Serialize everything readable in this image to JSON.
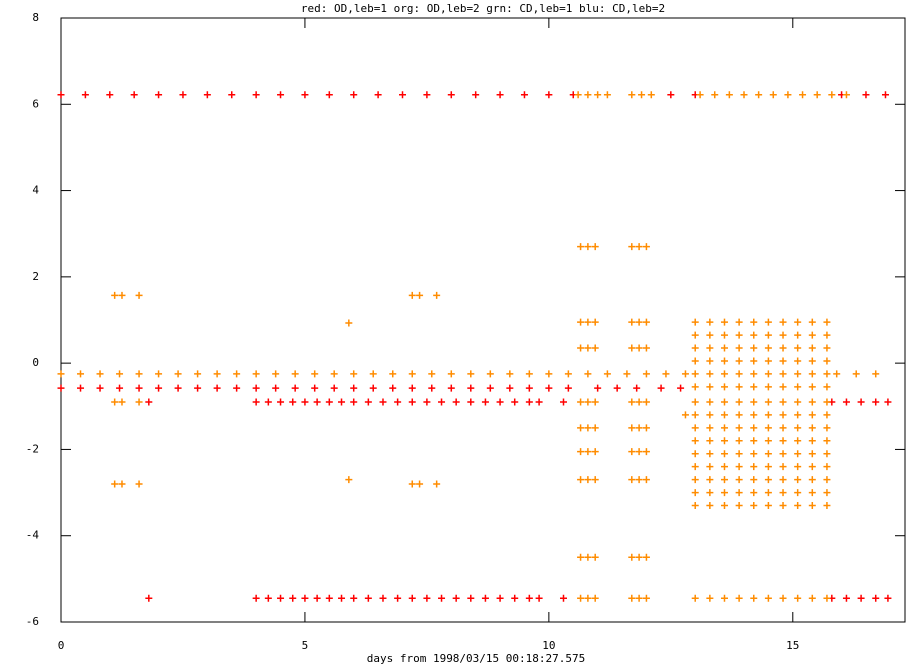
{
  "chart_data": {
    "type": "scatter",
    "title": "red: OD,leb=1  org: OD,leb=2  grn: CD,leb=1  blu: CD,leb=2",
    "x_label": "days from 1998/03/15 00:18:27.575",
    "xlim": [
      0,
      17.3
    ],
    "ylim": [
      -6,
      8
    ],
    "xticks": [
      0,
      5,
      10,
      15
    ],
    "yticks": [
      -6,
      -4,
      -2,
      0,
      2,
      4,
      6,
      8
    ],
    "series": [
      {
        "color": "#ff0000",
        "x": [
          0,
          0.5,
          1,
          1.5,
          2,
          2.5,
          3,
          3.5,
          4,
          4.5,
          5,
          5.5,
          6,
          6.5,
          7,
          7.5,
          8,
          8.5,
          9,
          9.5,
          10,
          10.5,
          12.5,
          13,
          16,
          16.5,
          16.9
        ],
        "values": [
          6.22,
          6.22,
          6.22,
          6.22,
          6.22,
          6.22,
          6.22,
          6.22,
          6.22,
          6.22,
          6.22,
          6.22,
          6.22,
          6.22,
          6.22,
          6.22,
          6.22,
          6.22,
          6.22,
          6.22,
          6.22,
          6.22,
          6.22,
          6.22,
          6.22,
          6.22,
          6.22
        ]
      },
      {
        "color": "#ff8c00",
        "x": [
          10.6,
          10.8,
          11,
          11.2,
          11.7,
          11.9,
          12.1,
          13.1,
          13.4,
          13.7,
          14,
          14.3,
          14.6,
          14.9,
          15.2,
          15.5,
          15.8,
          16.1
        ],
        "values": [
          6.22,
          6.22,
          6.22,
          6.22,
          6.22,
          6.22,
          6.22,
          6.22,
          6.22,
          6.22,
          6.22,
          6.22,
          6.22,
          6.22,
          6.22,
          6.22,
          6.22,
          6.22
        ]
      },
      {
        "color": "#ff0000",
        "x": [
          0,
          0.4,
          0.8,
          1.2,
          1.6,
          2,
          2.4,
          2.8,
          3.2,
          3.6,
          4,
          4.4,
          4.8,
          5.2,
          5.6,
          6,
          6.4,
          6.8,
          7.2,
          7.6,
          8,
          8.4,
          8.8,
          9.2,
          9.6,
          10,
          10.4,
          11,
          11.4,
          11.8,
          12.3,
          12.7
        ],
        "values": [
          -0.58,
          -0.58,
          -0.58,
          -0.58,
          -0.58,
          -0.58,
          -0.58,
          -0.58,
          -0.58,
          -0.58,
          -0.58,
          -0.58,
          -0.58,
          -0.58,
          -0.58,
          -0.58,
          -0.58,
          -0.58,
          -0.58,
          -0.58,
          -0.58,
          -0.58,
          -0.58,
          -0.58,
          -0.58,
          -0.58,
          -0.58,
          -0.58,
          -0.58,
          -0.58,
          -0.58,
          -0.58
        ]
      },
      {
        "color": "#ff0000",
        "x": [
          1.8,
          4,
          4.25,
          4.5,
          4.75,
          5,
          5.25,
          5.5,
          5.75,
          6,
          6.3,
          6.6,
          6.9,
          7.2,
          7.5,
          7.8,
          8.1,
          8.4,
          8.7,
          9,
          9.3,
          9.6,
          9.8,
          10.3,
          15.8,
          16.1,
          16.4,
          16.7,
          16.95
        ],
        "values": [
          -0.9,
          -0.9,
          -0.9,
          -0.9,
          -0.9,
          -0.9,
          -0.9,
          -0.9,
          -0.9,
          -0.9,
          -0.9,
          -0.9,
          -0.9,
          -0.9,
          -0.9,
          -0.9,
          -0.9,
          -0.9,
          -0.9,
          -0.9,
          -0.9,
          -0.9,
          -0.9,
          -0.9,
          -0.9,
          -0.9,
          -0.9,
          -0.9,
          -0.9
        ]
      },
      {
        "color": "#ff0000",
        "x": [
          1.8,
          4,
          4.25,
          4.5,
          4.75,
          5,
          5.25,
          5.5,
          5.75,
          6,
          6.3,
          6.6,
          6.9,
          7.2,
          7.5,
          7.8,
          8.1,
          8.4,
          8.7,
          9,
          9.3,
          9.6,
          9.8,
          10.3,
          15.8,
          16.1,
          16.4,
          16.7,
          16.95
        ],
        "values": [
          -5.45,
          -5.45,
          -5.45,
          -5.45,
          -5.45,
          -5.45,
          -5.45,
          -5.45,
          -5.45,
          -5.45,
          -5.45,
          -5.45,
          -5.45,
          -5.45,
          -5.45,
          -5.45,
          -5.45,
          -5.45,
          -5.45,
          -5.45,
          -5.45,
          -5.45,
          -5.45,
          -5.45,
          -5.45,
          -5.45,
          -5.45,
          -5.45,
          -5.45
        ]
      },
      {
        "color": "#ff8c00",
        "x": [
          0,
          0.4,
          0.8,
          1.2,
          1.6,
          2,
          2.4,
          2.8,
          3.2,
          3.6,
          4,
          4.4,
          4.8,
          5.2,
          5.6,
          6,
          6.4,
          6.8,
          7.2,
          7.6,
          8,
          8.4,
          8.8,
          9.2,
          9.6,
          10,
          10.4,
          10.8,
          11.2,
          11.6,
          12,
          12.4,
          12.8,
          15.9,
          16.3,
          16.7
        ],
        "values": [
          -0.25,
          -0.25,
          -0.25,
          -0.25,
          -0.25,
          -0.25,
          -0.25,
          -0.25,
          -0.25,
          -0.25,
          -0.25,
          -0.25,
          -0.25,
          -0.25,
          -0.25,
          -0.25,
          -0.25,
          -0.25,
          -0.25,
          -0.25,
          -0.25,
          -0.25,
          -0.25,
          -0.25,
          -0.25,
          -0.25,
          -0.25,
          -0.25,
          -0.25,
          -0.25,
          -0.25,
          -0.25,
          -0.25,
          -0.25,
          -0.25,
          -0.25
        ]
      },
      {
        "color": "#ff8c00",
        "x": [
          1.1,
          1.25,
          1.6,
          7.2,
          7.35,
          7.7,
          1.1,
          1.25,
          1.6,
          7.2,
          7.35,
          7.7,
          1.1,
          1.25,
          1.6,
          5.9,
          5.9,
          12.8
        ],
        "values": [
          1.57,
          1.57,
          1.57,
          1.57,
          1.57,
          1.57,
          -2.8,
          -2.8,
          -2.8,
          -2.8,
          -2.8,
          -2.8,
          -0.9,
          -0.9,
          -0.9,
          0.93,
          -2.7,
          -1.2
        ]
      },
      {
        "color": "#ff8c00",
        "x": [
          10.65,
          10.8,
          10.95,
          11.7,
          11.85,
          12.0
        ],
        "values": [
          2.7,
          2.7,
          2.7,
          2.7,
          2.7,
          2.7
        ]
      },
      {
        "color": "#ff8c00",
        "x": [
          10.65,
          10.8,
          10.95,
          11.7,
          11.85,
          12.0
        ],
        "values": [
          0.95,
          0.95,
          0.95,
          0.95,
          0.95,
          0.95
        ]
      },
      {
        "color": "#ff8c00",
        "x": [
          10.65,
          10.8,
          10.95,
          11.7,
          11.85,
          12.0
        ],
        "values": [
          0.35,
          0.35,
          0.35,
          0.35,
          0.35,
          0.35
        ]
      },
      {
        "color": "#ff8c00",
        "x": [
          10.65,
          10.8,
          10.95,
          11.7,
          11.85,
          12.0
        ],
        "values": [
          -0.9,
          -0.9,
          -0.9,
          -0.9,
          -0.9,
          -0.9
        ]
      },
      {
        "color": "#ff8c00",
        "x": [
          10.65,
          10.8,
          10.95,
          11.7,
          11.85,
          12.0
        ],
        "values": [
          -1.5,
          -1.5,
          -1.5,
          -1.5,
          -1.5,
          -1.5
        ]
      },
      {
        "color": "#ff8c00",
        "x": [
          10.65,
          10.8,
          10.95,
          11.7,
          11.85,
          12.0
        ],
        "values": [
          -2.05,
          -2.05,
          -2.05,
          -2.05,
          -2.05,
          -2.05
        ]
      },
      {
        "color": "#ff8c00",
        "x": [
          10.65,
          10.8,
          10.95,
          11.7,
          11.85,
          12.0
        ],
        "values": [
          -2.7,
          -2.7,
          -2.7,
          -2.7,
          -2.7,
          -2.7
        ]
      },
      {
        "color": "#ff8c00",
        "x": [
          10.65,
          10.8,
          10.95,
          11.7,
          11.85,
          12.0
        ],
        "values": [
          -4.5,
          -4.5,
          -4.5,
          -4.5,
          -4.5,
          -4.5
        ]
      },
      {
        "color": "#ff8c00",
        "x": [
          10.65,
          10.8,
          10.95,
          11.7,
          11.85,
          12.0
        ],
        "values": [
          -5.45,
          -5.45,
          -5.45,
          -5.45,
          -5.45,
          -5.45
        ]
      },
      {
        "color": "#ff8c00",
        "x": [
          13.0,
          13.3,
          13.6,
          13.9,
          14.2,
          14.5,
          14.8,
          15.1,
          15.4,
          15.7
        ],
        "values": [
          0.95,
          0.95,
          0.95,
          0.95,
          0.95,
          0.95,
          0.95,
          0.95,
          0.95,
          0.95
        ]
      },
      {
        "color": "#ff8c00",
        "x": [
          13.0,
          13.3,
          13.6,
          13.9,
          14.2,
          14.5,
          14.8,
          15.1,
          15.4,
          15.7
        ],
        "values": [
          0.65,
          0.65,
          0.65,
          0.65,
          0.65,
          0.65,
          0.65,
          0.65,
          0.65,
          0.65
        ]
      },
      {
        "color": "#ff8c00",
        "x": [
          13.0,
          13.3,
          13.6,
          13.9,
          14.2,
          14.5,
          14.8,
          15.1,
          15.4,
          15.7
        ],
        "values": [
          0.35,
          0.35,
          0.35,
          0.35,
          0.35,
          0.35,
          0.35,
          0.35,
          0.35,
          0.35
        ]
      },
      {
        "color": "#ff8c00",
        "x": [
          13.0,
          13.3,
          13.6,
          13.9,
          14.2,
          14.5,
          14.8,
          15.1,
          15.4,
          15.7
        ],
        "values": [
          0.05,
          0.05,
          0.05,
          0.05,
          0.05,
          0.05,
          0.05,
          0.05,
          0.05,
          0.05
        ]
      },
      {
        "color": "#ff8c00",
        "x": [
          13.0,
          13.3,
          13.6,
          13.9,
          14.2,
          14.5,
          14.8,
          15.1,
          15.4,
          15.7
        ],
        "values": [
          -0.25,
          -0.25,
          -0.25,
          -0.25,
          -0.25,
          -0.25,
          -0.25,
          -0.25,
          -0.25,
          -0.25
        ]
      },
      {
        "color": "#ff8c00",
        "x": [
          13.0,
          13.3,
          13.6,
          13.9,
          14.2,
          14.5,
          14.8,
          15.1,
          15.4,
          15.7
        ],
        "values": [
          -0.55,
          -0.55,
          -0.55,
          -0.55,
          -0.55,
          -0.55,
          -0.55,
          -0.55,
          -0.55,
          -0.55
        ]
      },
      {
        "color": "#ff8c00",
        "x": [
          13.0,
          13.3,
          13.6,
          13.9,
          14.2,
          14.5,
          14.8,
          15.1,
          15.4,
          15.7
        ],
        "values": [
          -0.9,
          -0.9,
          -0.9,
          -0.9,
          -0.9,
          -0.9,
          -0.9,
          -0.9,
          -0.9,
          -0.9
        ]
      },
      {
        "color": "#ff8c00",
        "x": [
          13.0,
          13.3,
          13.6,
          13.9,
          14.2,
          14.5,
          14.8,
          15.1,
          15.4,
          15.7
        ],
        "values": [
          -1.2,
          -1.2,
          -1.2,
          -1.2,
          -1.2,
          -1.2,
          -1.2,
          -1.2,
          -1.2,
          -1.2
        ]
      },
      {
        "color": "#ff8c00",
        "x": [
          13.0,
          13.3,
          13.6,
          13.9,
          14.2,
          14.5,
          14.8,
          15.1,
          15.4,
          15.7
        ],
        "values": [
          -1.5,
          -1.5,
          -1.5,
          -1.5,
          -1.5,
          -1.5,
          -1.5,
          -1.5,
          -1.5,
          -1.5
        ]
      },
      {
        "color": "#ff8c00",
        "x": [
          13.0,
          13.3,
          13.6,
          13.9,
          14.2,
          14.5,
          14.8,
          15.1,
          15.4,
          15.7
        ],
        "values": [
          -1.8,
          -1.8,
          -1.8,
          -1.8,
          -1.8,
          -1.8,
          -1.8,
          -1.8,
          -1.8,
          -1.8
        ]
      },
      {
        "color": "#ff8c00",
        "x": [
          13.0,
          13.3,
          13.6,
          13.9,
          14.2,
          14.5,
          14.8,
          15.1,
          15.4,
          15.7
        ],
        "values": [
          -2.1,
          -2.1,
          -2.1,
          -2.1,
          -2.1,
          -2.1,
          -2.1,
          -2.1,
          -2.1,
          -2.1
        ]
      },
      {
        "color": "#ff8c00",
        "x": [
          13.0,
          13.3,
          13.6,
          13.9,
          14.2,
          14.5,
          14.8,
          15.1,
          15.4,
          15.7
        ],
        "values": [
          -2.4,
          -2.4,
          -2.4,
          -2.4,
          -2.4,
          -2.4,
          -2.4,
          -2.4,
          -2.4,
          -2.4
        ]
      },
      {
        "color": "#ff8c00",
        "x": [
          13.0,
          13.3,
          13.6,
          13.9,
          14.2,
          14.5,
          14.8,
          15.1,
          15.4,
          15.7
        ],
        "values": [
          -2.7,
          -2.7,
          -2.7,
          -2.7,
          -2.7,
          -2.7,
          -2.7,
          -2.7,
          -2.7,
          -2.7
        ]
      },
      {
        "color": "#ff8c00",
        "x": [
          13.0,
          13.3,
          13.6,
          13.9,
          14.2,
          14.5,
          14.8,
          15.1,
          15.4,
          15.7
        ],
        "values": [
          -3.0,
          -3.0,
          -3.0,
          -3.0,
          -3.0,
          -3.0,
          -3.0,
          -3.0,
          -3.0,
          -3.0
        ]
      },
      {
        "color": "#ff8c00",
        "x": [
          13.0,
          13.3,
          13.6,
          13.9,
          14.2,
          14.5,
          14.8,
          15.1,
          15.4,
          15.7
        ],
        "values": [
          -3.3,
          -3.3,
          -3.3,
          -3.3,
          -3.3,
          -3.3,
          -3.3,
          -3.3,
          -3.3,
          -3.3
        ]
      },
      {
        "color": "#ff8c00",
        "x": [
          13.0,
          13.3,
          13.6,
          13.9,
          14.2,
          14.5,
          14.8,
          15.1,
          15.4,
          15.7
        ],
        "values": [
          -5.45,
          -5.45,
          -5.45,
          -5.45,
          -5.45,
          -5.45,
          -5.45,
          -5.45,
          -5.45,
          -5.45
        ]
      }
    ]
  }
}
